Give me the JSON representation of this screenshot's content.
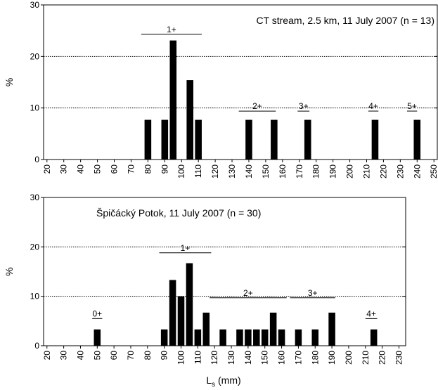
{
  "chart_data": [
    {
      "type": "bar",
      "title": "CT stream, 2.5 km, 11 July 2007 (n = 13)",
      "ylabel": "%",
      "color": "#000000",
      "grid": true,
      "x": [
        80,
        90,
        95,
        105,
        110,
        140,
        155,
        175,
        215,
        240
      ],
      "values": [
        7.7,
        7.7,
        23.1,
        15.4,
        7.7,
        7.7,
        7.7,
        7.7,
        7.7,
        7.7
      ],
      "xlim": [
        18,
        252
      ],
      "ylim": [
        0,
        30
      ],
      "xticks": [
        20,
        30,
        40,
        50,
        60,
        70,
        80,
        90,
        100,
        110,
        120,
        130,
        140,
        150,
        160,
        170,
        180,
        190,
        200,
        210,
        220,
        230,
        240,
        250
      ],
      "yticks": [
        0,
        10,
        20,
        30
      ],
      "annotations": [
        {
          "text": "1+",
          "x": [
            76,
            112
          ],
          "y": 24.3
        },
        {
          "text": "2+",
          "x": [
            134,
            156
          ],
          "y": 9.4
        },
        {
          "text": "3+",
          "x": [
            169,
            176
          ],
          "y": 9.4
        },
        {
          "text": "4+",
          "x": [
            211,
            217
          ],
          "y": 9.4
        },
        {
          "text": "5+",
          "x": [
            234,
            240
          ],
          "y": 9.4
        }
      ]
    },
    {
      "type": "bar",
      "title": "Špičácký Potok, 11 July 2007 (n = 30)",
      "ylabel": "%",
      "color": "#000000",
      "grid": true,
      "xlabel": [
        "L",
        "s",
        " (mm)"
      ],
      "x": [
        50,
        90,
        95,
        100,
        105,
        110,
        115,
        125,
        135,
        140,
        145,
        150,
        155,
        160,
        170,
        180,
        190,
        215
      ],
      "values": [
        3.3,
        3.3,
        13.3,
        10,
        16.7,
        3.3,
        6.7,
        3.3,
        3.3,
        3.3,
        3.3,
        3.3,
        6.7,
        3.3,
        3.3,
        3.3,
        6.7,
        3.3
      ],
      "xlim": [
        18,
        234
      ],
      "ylim": [
        0,
        30
      ],
      "xticks": [
        20,
        30,
        40,
        50,
        60,
        70,
        80,
        90,
        100,
        110,
        120,
        130,
        140,
        150,
        160,
        170,
        180,
        190,
        200,
        210,
        220,
        230
      ],
      "yticks": [
        0,
        10,
        20,
        30
      ],
      "annotations": [
        {
          "text": "0+",
          "x": [
            47,
            53
          ],
          "y": 5.5
        },
        {
          "text": "1+",
          "x": [
            87,
            118
          ],
          "y": 18.8
        },
        {
          "text": "2+",
          "x": [
            117,
            163
          ],
          "y": 9.7
        },
        {
          "text": "3+",
          "x": [
            165,
            192
          ],
          "y": 9.7
        },
        {
          "text": "4+",
          "x": [
            210,
            217
          ],
          "y": 5.5
        }
      ]
    }
  ]
}
